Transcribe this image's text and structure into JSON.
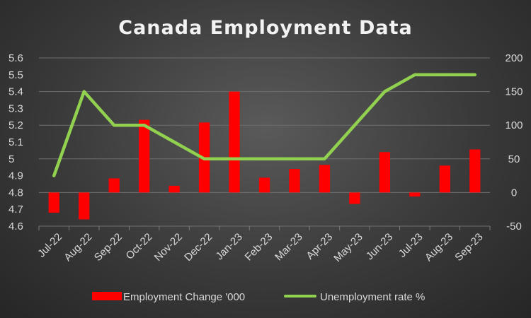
{
  "chart_data": {
    "type": "bar+line",
    "title": "Canada Employment Data",
    "categories": [
      "Jul-22",
      "Aug-22",
      "Sep-22",
      "Oct-22",
      "Nov-22",
      "Dec-22",
      "Jan-23",
      "Feb-23",
      "Mar-23",
      "Apr-23",
      "May-23",
      "Jun-23",
      "Jul-23",
      "Aug-23",
      "Sep-23"
    ],
    "series": [
      {
        "name": "Employment Change '000",
        "type": "bar",
        "axis": "right",
        "color": "#ff0000",
        "values": [
          -30,
          -40,
          21,
          108,
          10,
          104,
          150,
          22,
          35,
          41,
          -17,
          60,
          -6,
          40,
          64
        ]
      },
      {
        "name": "Unemployment rate %",
        "type": "line",
        "axis": "left",
        "color": "#92d050",
        "values": [
          4.9,
          5.4,
          5.2,
          5.2,
          5.1,
          5.0,
          5.0,
          5.0,
          5.0,
          5.0,
          5.2,
          5.4,
          5.5,
          5.5,
          5.5
        ]
      }
    ],
    "y_left": {
      "min": 4.6,
      "max": 5.6,
      "ticks": [
        "4.6",
        "4.7",
        "4.8",
        "4.9",
        "5",
        "5.1",
        "5.2",
        "5.3",
        "5.4",
        "5.5",
        "5.6"
      ]
    },
    "y_right": {
      "min": -50,
      "max": 200,
      "ticks": [
        "-50",
        "0",
        "50",
        "100",
        "150",
        "200"
      ]
    },
    "grid": true,
    "legend": "bottom"
  }
}
